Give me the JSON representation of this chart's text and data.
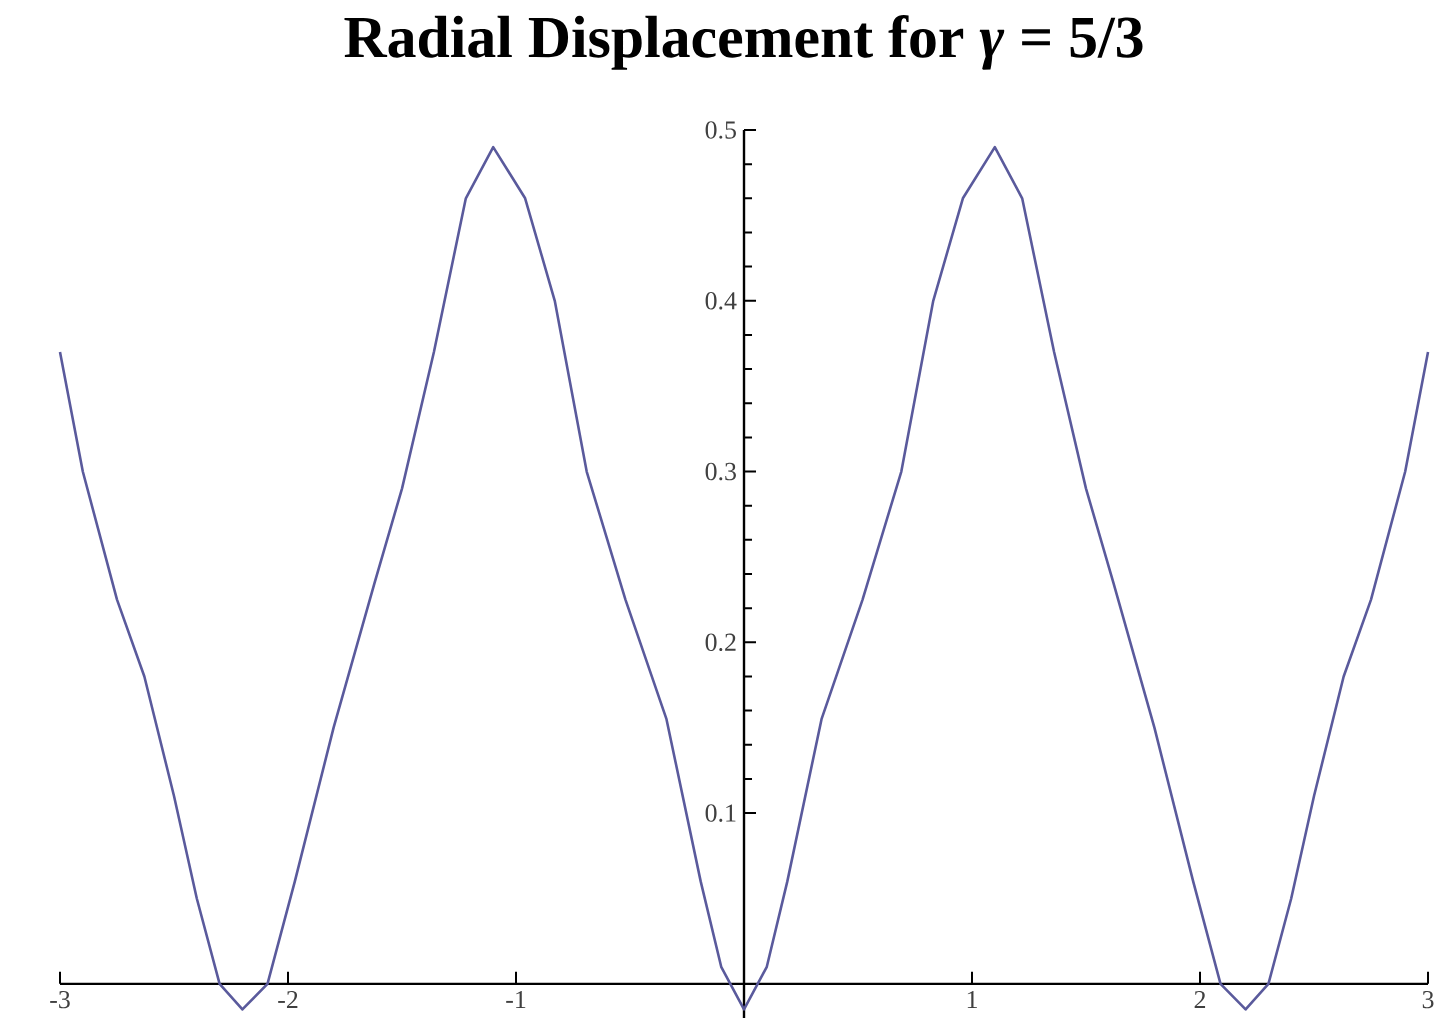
{
  "chart_data": {
    "type": "line",
    "title": "Radial Displacement for *γ* = 5/3",
    "x": [
      -3.0,
      -2.9,
      -2.75,
      -2.63,
      -2.5,
      -2.4,
      -2.3,
      -2.2,
      -2.09,
      -1.97,
      -1.8,
      -1.62,
      -1.5,
      -1.36,
      -1.22,
      -1.1,
      -0.96,
      -0.83,
      -0.69,
      -0.52,
      -0.34,
      -0.19,
      -0.1,
      0,
      0.1,
      0.19,
      0.34,
      0.52,
      0.69,
      0.83,
      0.96,
      1.1,
      1.22,
      1.36,
      1.5,
      1.62,
      1.8,
      1.97,
      2.09,
      2.2,
      2.3,
      2.4,
      2.5,
      2.63,
      2.75,
      2.9,
      3.0
    ],
    "values": [
      0.37,
      0.3,
      0.225,
      0.18,
      0.11,
      0.05,
      0.0,
      -0.015,
      0.0,
      0.06,
      0.15,
      0.235,
      0.29,
      0.37,
      0.46,
      0.49,
      0.46,
      0.4,
      0.3,
      0.225,
      0.155,
      0.06,
      0.01,
      -0.015,
      0.01,
      0.06,
      0.155,
      0.225,
      0.3,
      0.4,
      0.46,
      0.49,
      0.46,
      0.37,
      0.29,
      0.235,
      0.15,
      0.06,
      0.0,
      -0.015,
      0.0,
      0.05,
      0.11,
      0.18,
      0.225,
      0.3,
      0.37
    ],
    "color": "#5a5a9c",
    "xlim": [
      -3,
      3
    ],
    "ylim": [
      -0.02,
      0.5
    ],
    "xticks": [
      -3,
      -2,
      -1,
      1,
      2,
      3
    ],
    "yticks": [
      0.1,
      0.2,
      0.3,
      0.4,
      0.5
    ]
  }
}
